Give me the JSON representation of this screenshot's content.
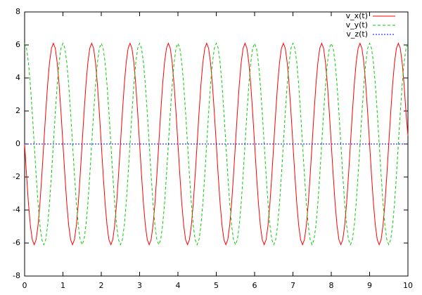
{
  "chart_data": {
    "type": "line",
    "x": [
      0,
      0.05,
      0.1,
      0.15,
      0.2,
      0.25,
      0.3,
      0.35,
      0.4,
      0.45,
      0.5,
      0.55,
      0.6,
      0.65,
      0.7,
      0.75,
      0.8,
      0.85,
      0.9,
      0.95,
      1,
      1.05,
      1.1,
      1.15,
      1.2,
      1.25,
      1.3,
      1.35,
      1.4,
      1.45,
      1.5,
      1.55,
      1.6,
      1.65,
      1.7,
      1.75,
      1.8,
      1.85,
      1.9,
      1.95,
      2,
      2.05,
      2.1,
      2.15,
      2.2,
      2.25,
      2.3,
      2.35,
      2.4,
      2.45,
      2.5,
      2.55,
      2.6,
      2.65,
      2.7,
      2.75,
      2.8,
      2.85,
      2.9,
      2.95,
      3,
      3.05,
      3.1,
      3.15,
      3.2,
      3.25,
      3.3,
      3.35,
      3.4,
      3.45,
      3.5,
      3.55,
      3.6,
      3.65,
      3.7,
      3.75,
      3.8,
      3.85,
      3.9,
      3.95,
      4,
      4.05,
      4.1,
      4.15,
      4.2,
      4.25,
      4.3,
      4.35,
      4.4,
      4.45,
      4.5,
      4.55,
      4.6,
      4.65,
      4.7,
      4.75,
      4.8,
      4.85,
      4.9,
      4.95,
      5,
      5.05,
      5.1,
      5.15,
      5.2,
      5.25,
      5.3,
      5.35,
      5.4,
      5.45,
      5.5,
      5.55,
      5.6,
      5.65,
      5.7,
      5.75,
      5.8,
      5.85,
      5.9,
      5.95,
      6,
      6.05,
      6.1,
      6.15,
      6.2,
      6.25,
      6.3,
      6.35,
      6.4,
      6.45,
      6.5,
      6.55,
      6.6,
      6.65,
      6.7,
      6.75,
      6.8,
      6.85,
      6.9,
      6.95,
      7,
      7.05,
      7.1,
      7.15,
      7.2,
      7.25,
      7.3,
      7.35,
      7.4,
      7.45,
      7.5,
      7.55,
      7.6,
      7.65,
      7.7,
      7.75,
      7.8,
      7.85,
      7.9,
      7.95,
      8,
      8.05,
      8.1,
      8.15,
      8.2,
      8.25,
      8.3,
      8.35,
      8.4,
      8.45,
      8.5,
      8.55,
      8.6,
      8.65,
      8.7,
      8.75,
      8.8,
      8.85,
      8.9,
      8.95,
      9,
      9.05,
      9.1,
      9.15,
      9.2,
      9.25,
      9.3,
      9.35,
      9.4,
      9.45,
      9.5,
      9.55,
      9.6,
      9.65,
      9.7,
      9.75,
      9.8,
      9.85,
      9.9,
      9.95,
      10
    ],
    "series": [
      {
        "name": "v_x(t)",
        "color": "#ff0000",
        "dash": "solid",
        "values": [
          0,
          -1.88,
          -3.59,
          -4.93,
          -5.8,
          -6.1,
          -5.8,
          -4.93,
          -3.59,
          -1.88,
          0,
          1.88,
          3.59,
          4.93,
          5.8,
          6.1,
          5.8,
          4.93,
          3.59,
          1.88,
          0,
          -1.88,
          -3.59,
          -4.93,
          -5.8,
          -6.1,
          -5.8,
          -4.93,
          -3.59,
          -1.88,
          0,
          1.88,
          3.59,
          4.93,
          5.8,
          6.1,
          5.8,
          4.93,
          3.59,
          1.88,
          0,
          -1.88,
          -3.59,
          -4.93,
          -5.8,
          -6.1,
          -5.8,
          -4.93,
          -3.59,
          -1.88,
          0,
          1.88,
          3.59,
          4.93,
          5.8,
          6.1,
          5.8,
          4.93,
          3.59,
          1.88,
          0,
          -1.88,
          -3.59,
          -4.93,
          -5.8,
          -6.1,
          -5.8,
          -4.93,
          -3.59,
          -1.88,
          0,
          1.88,
          3.59,
          4.93,
          5.8,
          6.1,
          5.8,
          4.93,
          3.59,
          1.88,
          0,
          -1.88,
          -3.59,
          -4.93,
          -5.8,
          -6.1,
          -5.8,
          -4.93,
          -3.59,
          -1.88,
          0,
          1.88,
          3.59,
          4.93,
          5.8,
          6.1,
          5.8,
          4.93,
          3.59,
          1.88,
          0,
          -1.88,
          -3.59,
          -4.93,
          -5.8,
          -6.1,
          -5.8,
          -4.93,
          -3.59,
          -1.88,
          0,
          1.88,
          3.59,
          4.93,
          5.8,
          6.1,
          5.8,
          4.93,
          3.59,
          1.88,
          0,
          -1.88,
          -3.59,
          -4.93,
          -5.8,
          -6.1,
          -5.8,
          -4.93,
          -3.59,
          -1.88,
          0,
          1.88,
          3.59,
          4.93,
          5.8,
          6.1,
          5.8,
          4.93,
          3.59,
          1.88,
          0,
          -1.88,
          -3.59,
          -4.93,
          -5.8,
          -6.1,
          -5.8,
          -4.93,
          -3.59,
          -1.88,
          0,
          1.88,
          3.59,
          4.93,
          5.8,
          6.1,
          5.8,
          4.93,
          3.59,
          1.88,
          0,
          -1.88,
          -3.59,
          -4.93,
          -5.8,
          -6.1,
          -5.8,
          -4.93,
          -3.59,
          -1.88,
          0,
          1.88,
          3.59,
          4.93,
          5.8,
          6.1,
          5.8,
          4.93,
          3.59,
          1.88,
          0,
          -1.88,
          -3.59,
          -4.93,
          -5.8,
          -6.1,
          -5.8,
          -4.93,
          -3.59,
          -1.88,
          0,
          1.88,
          3.59,
          4.93,
          5.8,
          6.1,
          5.8,
          4.93,
          3.59,
          1.88,
          0.5
        ]
      },
      {
        "name": "v_y(t)",
        "color": "#00cc00",
        "dash": "dashed",
        "values": [
          6.1,
          5.8,
          4.93,
          3.59,
          1.88,
          0,
          -1.88,
          -3.59,
          -4.93,
          -5.8,
          -6.1,
          -5.8,
          -4.93,
          -3.59,
          -1.88,
          0,
          1.88,
          3.59,
          4.93,
          5.8,
          6.1,
          5.8,
          4.93,
          3.59,
          1.88,
          0,
          -1.88,
          -3.59,
          -4.93,
          -5.8,
          -6.1,
          -5.8,
          -4.93,
          -3.59,
          -1.88,
          0,
          1.88,
          3.59,
          4.93,
          5.8,
          6.1,
          5.8,
          4.93,
          3.59,
          1.88,
          0,
          -1.88,
          -3.59,
          -4.93,
          -5.8,
          -6.1,
          -5.8,
          -4.93,
          -3.59,
          -1.88,
          0,
          1.88,
          3.59,
          4.93,
          5.8,
          6.1,
          5.8,
          4.93,
          3.59,
          1.88,
          0,
          -1.88,
          -3.59,
          -4.93,
          -5.8,
          -6.1,
          -5.8,
          -4.93,
          -3.59,
          -1.88,
          0,
          1.88,
          3.59,
          4.93,
          5.8,
          6.1,
          5.8,
          4.93,
          3.59,
          1.88,
          0,
          -1.88,
          -3.59,
          -4.93,
          -5.8,
          -6.1,
          -5.8,
          -4.93,
          -3.59,
          -1.88,
          0,
          1.88,
          3.59,
          4.93,
          5.8,
          6.1,
          5.8,
          4.93,
          3.59,
          1.88,
          0,
          -1.88,
          -3.59,
          -4.93,
          -5.8,
          -6.1,
          -5.8,
          -4.93,
          -3.59,
          -1.88,
          0,
          1.88,
          3.59,
          4.93,
          5.8,
          6.1,
          5.8,
          4.93,
          3.59,
          1.88,
          0,
          -1.88,
          -3.59,
          -4.93,
          -5.8,
          -6.1,
          -5.8,
          -4.93,
          -3.59,
          -1.88,
          0,
          1.88,
          3.59,
          4.93,
          5.8,
          6.1,
          5.8,
          4.93,
          3.59,
          1.88,
          0,
          -1.88,
          -3.59,
          -4.93,
          -5.8,
          -6.1,
          -5.8,
          -4.93,
          -3.59,
          -1.88,
          0,
          1.88,
          3.59,
          4.93,
          5.8,
          6.1,
          5.8,
          4.93,
          3.59,
          1.88,
          0,
          -1.88,
          -3.59,
          -4.93,
          -5.8,
          -6.1,
          -5.8,
          -4.93,
          -3.59,
          -1.88,
          0,
          1.88,
          3.59,
          4.93,
          5.8,
          6.1,
          5.8,
          4.93,
          3.59,
          1.88,
          0,
          -1.88,
          -3.59,
          -4.93,
          -5.8,
          -6.1,
          -5.8,
          -4.93,
          -3.59,
          -1.88,
          0,
          1.88,
          3.59,
          4.93,
          5.8,
          6.1
        ]
      },
      {
        "name": "v_z(t)",
        "color": "#0000ff",
        "dash": "dotted",
        "values": [
          0,
          0,
          0,
          0,
          0,
          0,
          0,
          0,
          0,
          0,
          0,
          0,
          0,
          0,
          0,
          0,
          0,
          0,
          0,
          0,
          0,
          0,
          0,
          0,
          0,
          0,
          0,
          0,
          0,
          0,
          0,
          0,
          0,
          0,
          0,
          0,
          0,
          0,
          0,
          0,
          0,
          0,
          0,
          0,
          0,
          0,
          0,
          0,
          0,
          0,
          0,
          0,
          0,
          0,
          0,
          0,
          0,
          0,
          0,
          0,
          0,
          0,
          0,
          0,
          0,
          0,
          0,
          0,
          0,
          0,
          0,
          0,
          0,
          0,
          0,
          0,
          0,
          0,
          0,
          0,
          0,
          0,
          0,
          0,
          0,
          0,
          0,
          0,
          0,
          0,
          0,
          0,
          0,
          0,
          0,
          0,
          0,
          0,
          0,
          0,
          0,
          0,
          0,
          0,
          0,
          0,
          0,
          0,
          0,
          0,
          0,
          0,
          0,
          0,
          0,
          0,
          0,
          0,
          0,
          0,
          0,
          0,
          0,
          0,
          0,
          0,
          0,
          0,
          0,
          0,
          0,
          0,
          0,
          0,
          0,
          0,
          0,
          0,
          0,
          0,
          0,
          0,
          0,
          0,
          0,
          0,
          0,
          0,
          0,
          0,
          0,
          0,
          0,
          0,
          0,
          0,
          0,
          0,
          0,
          0,
          0,
          0,
          0,
          0,
          0,
          0,
          0,
          0,
          0,
          0,
          0,
          0,
          0,
          0,
          0,
          0,
          0,
          0,
          0,
          0,
          0,
          0,
          0,
          0,
          0,
          0,
          0,
          0,
          0,
          0,
          0,
          0,
          0,
          0,
          0,
          0,
          0,
          0,
          0,
          0,
          0
        ]
      }
    ],
    "xlim": [
      0,
      10
    ],
    "xticks": [
      0,
      1,
      2,
      3,
      4,
      5,
      6,
      7,
      8,
      9,
      10
    ],
    "ylim": [
      -8,
      8
    ],
    "yticks": [
      -8,
      -6,
      -4,
      -2,
      0,
      2,
      4,
      6,
      8
    ],
    "legend": "top-right"
  }
}
